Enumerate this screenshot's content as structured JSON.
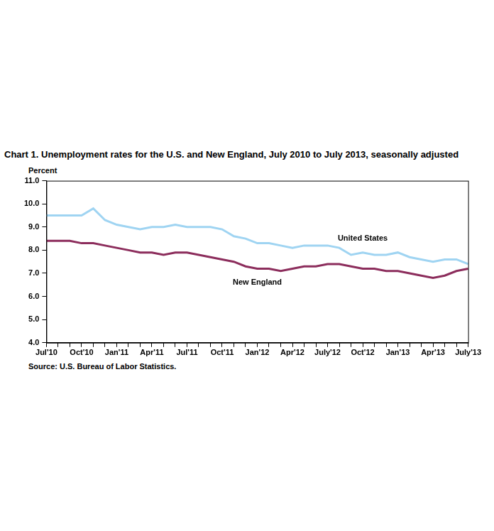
{
  "chart_data": {
    "type": "line",
    "title": "Chart 1. Unemployment rates for the U.S. and New England, July 2010 to July 2013, seasonally adjusted",
    "y_label": "Percent",
    "source": "Source: U.S. Bureau of Labor Statistics.",
    "categories": [
      "Jul'10",
      null,
      null,
      "Oct'10",
      null,
      null,
      "Jan'11",
      null,
      null,
      "Apr'11",
      null,
      null,
      "Jul'11",
      null,
      null,
      "Oct'11",
      null,
      null,
      "Jan'12",
      null,
      null,
      "Apr'12",
      null,
      null,
      "July'12",
      null,
      null,
      "Oct'12",
      null,
      null,
      "Jan'13",
      null,
      null,
      "Apr'13",
      null,
      null,
      "July'13"
    ],
    "series": [
      {
        "name": "United States",
        "color": "#9fd4f2",
        "values": [
          9.5,
          9.5,
          9.5,
          9.5,
          9.8,
          9.3,
          9.1,
          9.0,
          8.9,
          9.0,
          9.0,
          9.1,
          9.0,
          9.0,
          9.0,
          8.9,
          8.6,
          8.5,
          8.3,
          8.3,
          8.2,
          8.1,
          8.2,
          8.2,
          8.2,
          8.1,
          7.8,
          7.9,
          7.8,
          7.8,
          7.9,
          7.7,
          7.6,
          7.5,
          7.6,
          7.6,
          7.4
        ]
      },
      {
        "name": "New England",
        "color": "#8c2d5c",
        "values": [
          8.4,
          8.4,
          8.4,
          8.3,
          8.3,
          8.2,
          8.1,
          8.0,
          7.9,
          7.9,
          7.8,
          7.9,
          7.9,
          7.8,
          7.7,
          7.6,
          7.5,
          7.3,
          7.2,
          7.2,
          7.1,
          7.2,
          7.3,
          7.3,
          7.4,
          7.4,
          7.3,
          7.2,
          7.2,
          7.1,
          7.1,
          7.0,
          6.9,
          6.8,
          6.9,
          7.1,
          7.2
        ]
      }
    ],
    "ylim": [
      4,
      11
    ],
    "yticks": [
      {
        "value": 4,
        "label": "4.0"
      },
      {
        "value": 5,
        "label": "5.0"
      },
      {
        "value": 6,
        "label": "6.0"
      },
      {
        "value": 7,
        "label": "7.0"
      },
      {
        "value": 8,
        "label": "8.0"
      },
      {
        "value": 9,
        "label": "9.0"
      },
      {
        "value": 10,
        "label": "10.0"
      },
      {
        "value": 11,
        "label": "11.0"
      }
    ],
    "grid": false
  }
}
